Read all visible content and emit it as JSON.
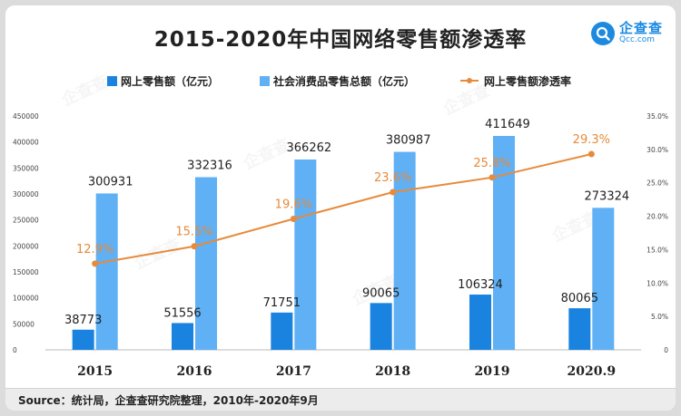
{
  "title": "2015-2020年中国网络零售额渗透率",
  "logo": {
    "name": "企查查",
    "sub": "Qcc.com"
  },
  "source": "Source：统计局，企查查研究院整理，2010年-2020年9月",
  "colors": {
    "online": "#1a82df",
    "total": "#5fb0f5",
    "rate": "#e68a3c"
  },
  "chart_data": {
    "type": "bar",
    "categories": [
      "2015",
      "2016",
      "2017",
      "2018",
      "2019",
      "2020.9"
    ],
    "series": [
      {
        "name": "网上零售额（亿元）",
        "type": "bar",
        "axis": "left",
        "values": [
          38773,
          51556,
          71751,
          90065,
          106324,
          80065
        ],
        "labels": [
          "38773",
          "51556",
          "71751",
          "90065",
          "106324",
          "80065"
        ]
      },
      {
        "name": "社会消费品零售总额（亿元）",
        "type": "bar",
        "axis": "left",
        "values": [
          300931,
          332316,
          366262,
          380987,
          411649,
          273324
        ],
        "labels": [
          "300931",
          "332316",
          "366262",
          "380987",
          "411649",
          "273324"
        ]
      },
      {
        "name": "网上零售额渗透率",
        "type": "line",
        "axis": "right",
        "values": [
          12.9,
          15.5,
          19.6,
          23.6,
          25.8,
          29.3
        ],
        "labels": [
          "12.9%",
          "15.5%",
          "19.6%",
          "23.6%",
          "25.8%",
          "29.3%"
        ]
      }
    ],
    "y_left": {
      "lim": [
        0,
        450000
      ],
      "ticks": [
        "0",
        "50000",
        "100000",
        "150000",
        "200000",
        "250000",
        "300000",
        "350000",
        "400000",
        "450000"
      ]
    },
    "y_right": {
      "lim": [
        0,
        35
      ],
      "ticks": [
        "0",
        "5.0%",
        "10.0%",
        "15.0%",
        "20.0%",
        "25.0%",
        "30.0%",
        "35.0%"
      ]
    },
    "legend": "top",
    "grid": false
  }
}
